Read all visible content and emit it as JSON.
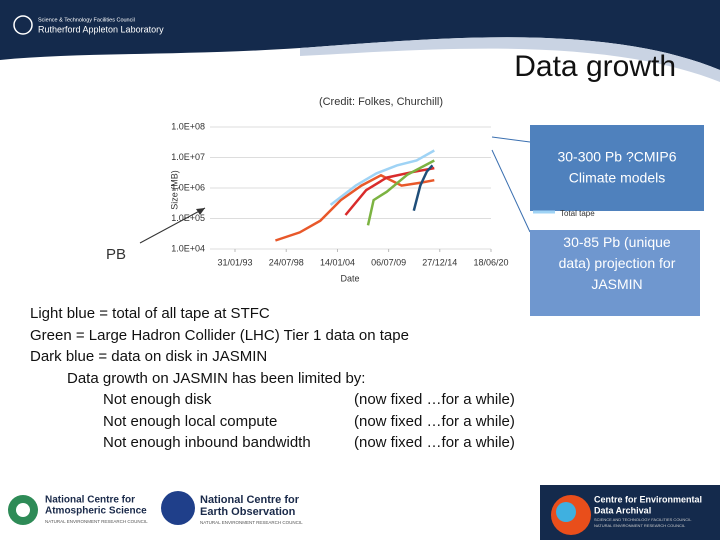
{
  "header": {
    "org": "Science & Technology Facilities Council",
    "lab": "Rutherford Appleton Laboratory",
    "title": "Data growth"
  },
  "chart_data": {
    "type": "line",
    "title": "(Credit: Folkes, Churchill)",
    "y_label": "Size (MB)",
    "x_label": "Date",
    "log_y": true,
    "grid": true,
    "xlim": [
      1993.08,
      2020.46
    ],
    "xticks": [
      {
        "value": 1993.08,
        "label": "31/01/93"
      },
      {
        "value": 1998.56,
        "label": "24/07/98"
      },
      {
        "value": 2004.04,
        "label": "14/01/04"
      },
      {
        "value": 2009.51,
        "label": "06/07/09"
      },
      {
        "value": 2014.98,
        "label": "27/12/14"
      },
      {
        "value": 2020.46,
        "label": "18/06/20"
      }
    ],
    "ylim": [
      10000,
      100000000
    ],
    "yticks": [
      {
        "value": 10000,
        "label": "1.0E+04"
      },
      {
        "value": 100000,
        "label": "1.0E+05"
      },
      {
        "value": 1000000,
        "label": "1.0E+06"
      },
      {
        "value": 10000000,
        "label": "1.0E+07"
      },
      {
        "value": 100000000,
        "label": "1.0E+08"
      }
    ],
    "series": [
      {
        "color": "#e8582a",
        "x": [
          1997.4,
          2000,
          2002.2,
          2004.4,
          2006.6,
          2008.7,
          2010.9,
          2013,
          2014.4
        ],
        "values": [
          19000,
          35000,
          85000,
          400000,
          1200000,
          2600000,
          1200000,
          1500000,
          1800000
        ]
      },
      {
        "name": "Total tape",
        "color": "#9fd3f5",
        "x": [
          2003.3,
          2006,
          2008.2,
          2010.4,
          2012.5,
          2014.4
        ],
        "values": [
          280000,
          1200000,
          3000000,
          5500000,
          8000000,
          17000000
        ]
      },
      {
        "color": "#d92b2b",
        "x": [
          2004.9,
          2007.1,
          2009.3,
          2012,
          2014.4
        ],
        "values": [
          130000,
          850000,
          2200000,
          3300000,
          4500000
        ]
      },
      {
        "color": "#7cb342",
        "x": [
          2007.3,
          2007.9,
          2009.3,
          2011.5,
          2014.4
        ],
        "values": [
          60000,
          400000,
          750000,
          2700000,
          8000000
        ]
      },
      {
        "color": "#1f4e79",
        "x": [
          2012.2,
          2012.9,
          2013.6,
          2014.2
        ],
        "values": [
          180000,
          1200000,
          3500000,
          5500000
        ]
      }
    ]
  },
  "pb_label": "PB",
  "callouts": [
    "30-300 Pb ?CMIP6 Climate models",
    "30-85 Pb (unique data) projection for JASMIN"
  ],
  "body": {
    "lines": [
      "Light blue = total of all tape at STFC",
      "Green = Large Hadron Collider (LHC) Tier 1 data on tape",
      "Dark blue = data on disk in JASMIN"
    ],
    "heading": "Data growth on JASMIN has been limited by:",
    "items": [
      {
        "reason": "Not enough disk",
        "status": "(now fixed …for a while)"
      },
      {
        "reason": "Not enough local compute",
        "status": "(now fixed …for a while)"
      },
      {
        "reason": "Not enough inbound bandwidth",
        "status": "(now fixed …for a while)"
      }
    ]
  },
  "footer": {
    "ncas": [
      "National Centre for",
      "Atmospheric Science",
      "NATURAL ENVIRONMENT RESEARCH COUNCIL"
    ],
    "nceo": [
      "National Centre for",
      "Earth Observation",
      "NATURAL ENVIRONMENT RESEARCH COUNCIL"
    ],
    "ceda": [
      "Centre for Environmental",
      "Data Archival",
      "SCIENCE AND TECHNOLOGY FACILITIES COUNCIL",
      "NATURAL ENVIRONMENT RESEARCH COUNCIL"
    ]
  }
}
